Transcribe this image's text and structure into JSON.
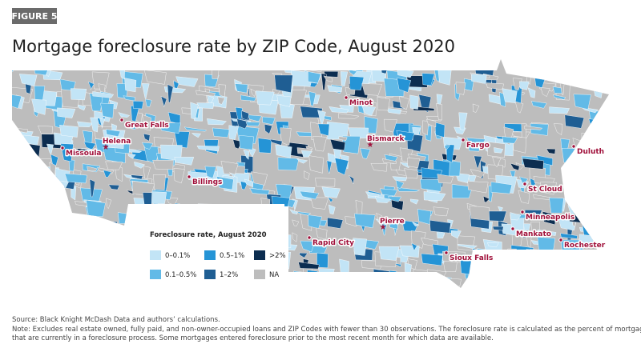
{
  "figure_label": "FIGURE 5",
  "title": "Mortgage foreclosure rate by ZIP Code, August 2020",
  "cities": [
    "Minot",
    "Great Falls",
    "Missoula",
    "Helena",
    "Bismarck",
    "Fargo",
    "Duluth",
    "Billings",
    "St Cloud",
    "Minneapolis",
    "Mankato",
    "Rochester",
    "Rapid City",
    "Pierre",
    "Sioux Falls"
  ],
  "legend": {
    "title": "Foreclosure rate, August 2020",
    "items": [
      {
        "label": "0–0.1%",
        "color": "#c2e4f6"
      },
      {
        "label": "0.1–0.5%",
        "color": "#62bae7"
      },
      {
        "label": "0.5–1%",
        "color": "#2594d6"
      },
      {
        "label": "1–2%",
        "color": "#1f5e93"
      },
      {
        "label": ">2%",
        "color": "#0c2d50"
      },
      {
        "label": "NA",
        "color": "#bdbdbd"
      }
    ]
  },
  "source": "Source: Black Knight McDash Data and authors’ calculations.",
  "note": [
    "Note: Excludes real estate owned, fully paid, and non-owner-occupied loans and ZIP Codes with fewer than 30 observations. The foreclosure rate is calculated as the percent of mortgages",
    "that are currently in a foreclosure process. Some mortgages entered foreclosure prior to the most recent month for which data are available."
  ]
}
